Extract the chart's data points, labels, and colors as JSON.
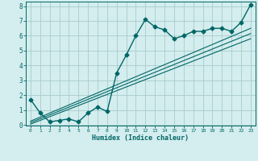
{
  "xlabel": "Humidex (Indice chaleur)",
  "background_color": "#d4edee",
  "grid_color": "#a8cccc",
  "line_color": "#006666",
  "xlim": [
    -0.5,
    23.5
  ],
  "ylim": [
    -0.05,
    8.3
  ],
  "x_data": [
    0,
    1,
    2,
    3,
    4,
    5,
    6,
    7,
    8,
    9,
    10,
    11,
    12,
    13,
    14,
    15,
    16,
    17,
    18,
    19,
    20,
    21,
    22,
    23
  ],
  "y_data": [
    1.7,
    0.8,
    0.2,
    0.3,
    0.4,
    0.2,
    0.8,
    1.2,
    0.9,
    3.5,
    4.7,
    6.0,
    7.1,
    6.6,
    6.4,
    5.8,
    6.0,
    6.3,
    6.3,
    6.5,
    6.5,
    6.3,
    6.9,
    8.1
  ],
  "reg_lines": [
    {
      "x": [
        0,
        23
      ],
      "y": [
        0.05,
        5.8
      ]
    },
    {
      "x": [
        0,
        23
      ],
      "y": [
        0.15,
        6.15
      ]
    },
    {
      "x": [
        0,
        23
      ],
      "y": [
        0.25,
        6.5
      ]
    }
  ],
  "xticks": [
    0,
    1,
    2,
    3,
    4,
    5,
    6,
    7,
    8,
    9,
    10,
    11,
    12,
    13,
    14,
    15,
    16,
    17,
    18,
    19,
    20,
    21,
    22,
    23
  ],
  "yticks": [
    0,
    1,
    2,
    3,
    4,
    5,
    6,
    7,
    8
  ],
  "marker": "D",
  "markersize": 2.5,
  "linewidth": 1.0
}
